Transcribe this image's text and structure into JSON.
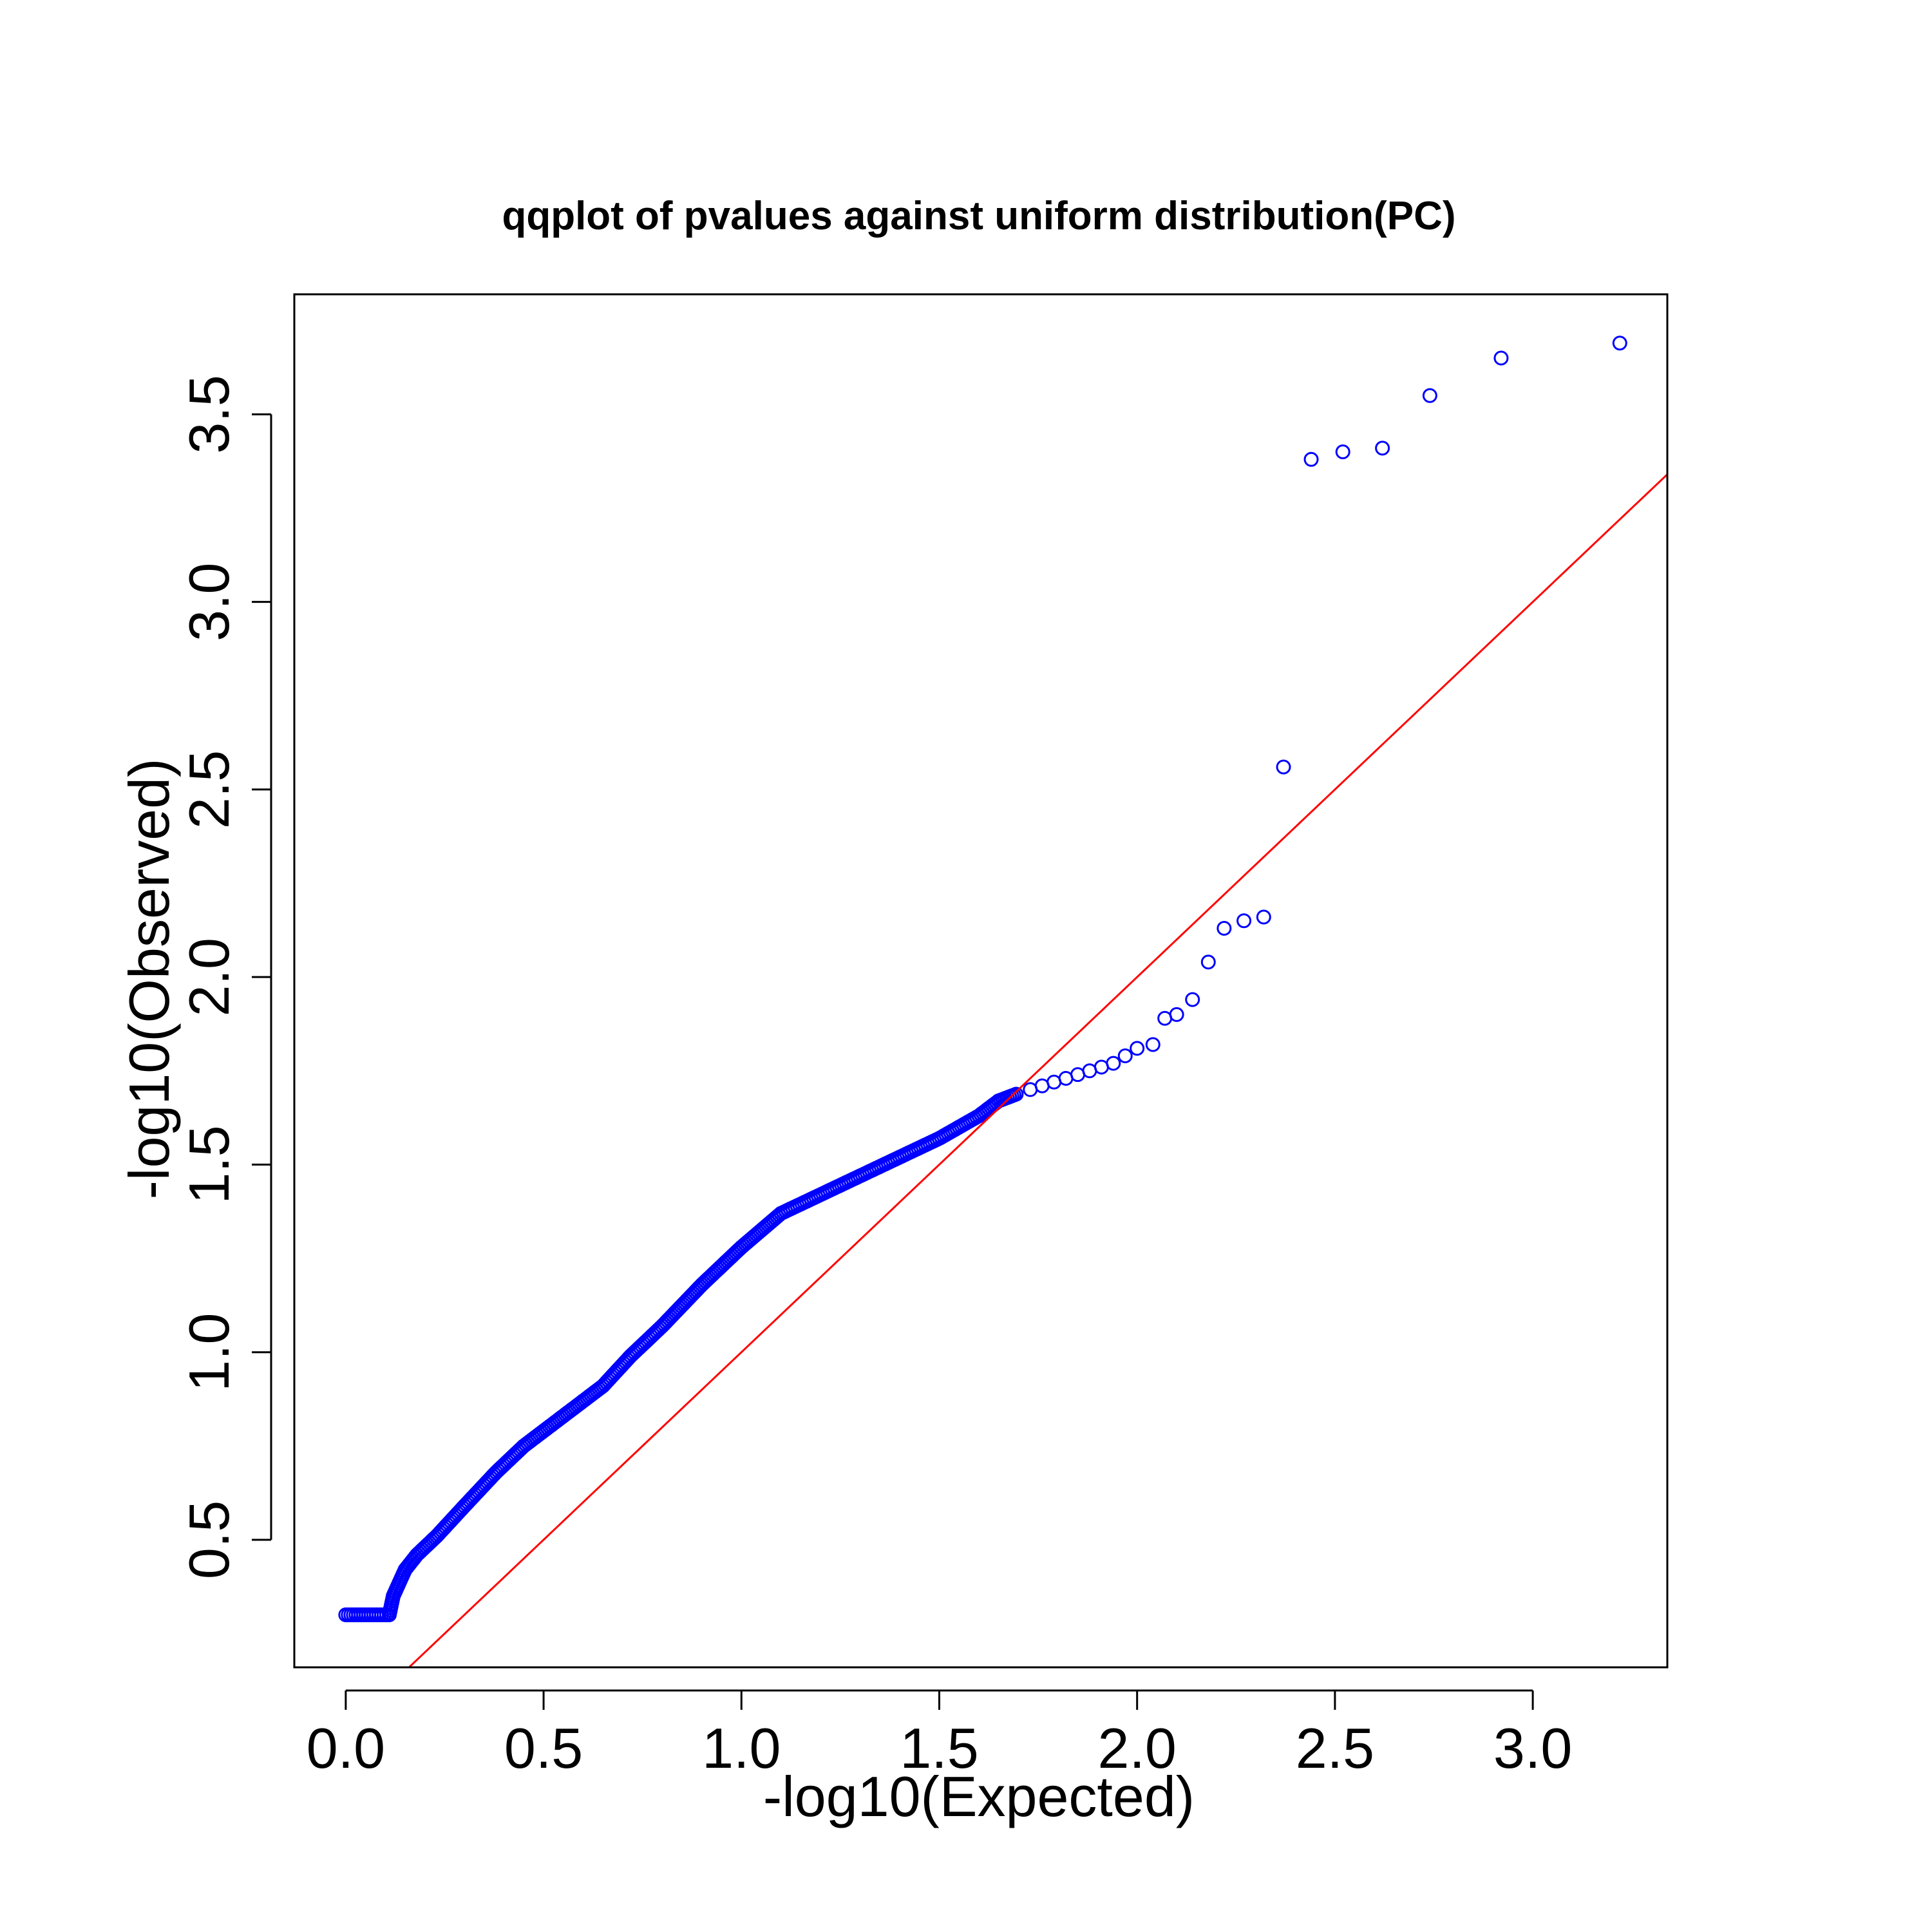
{
  "chart_data": {
    "type": "scatter",
    "title": "qqplot of pvalues against uniform distribution(PC)",
    "xlabel": "-log10(Expected)",
    "ylabel": "-log10(Observed)",
    "xlim": [
      -0.13,
      3.34
    ],
    "ylim": [
      0.16,
      3.82
    ],
    "xticks": [
      0.0,
      0.5,
      1.0,
      1.5,
      2.0,
      2.5,
      3.0
    ],
    "xtick_labels": [
      "0.0",
      "0.5",
      "1.0",
      "1.5",
      "2.0",
      "2.5",
      "3.0"
    ],
    "yticks": [
      0.5,
      1.0,
      1.5,
      2.0,
      2.5,
      3.0,
      3.5
    ],
    "ytick_labels": [
      "0.5",
      "1.0",
      "1.5",
      "2.0",
      "2.5",
      "3.0",
      "3.5"
    ],
    "grid": false,
    "point_color": "#0000ff",
    "reference_line_color": "#ff0000",
    "reference_line": {
      "slope": 1,
      "intercept": 0
    },
    "series": [
      {
        "curve": [
          [
            0.0,
            0.3
          ],
          [
            0.11,
            0.3
          ],
          [
            0.12,
            0.35
          ],
          [
            0.15,
            0.42
          ],
          [
            0.18,
            0.46
          ],
          [
            0.23,
            0.51
          ],
          [
            0.3,
            0.59
          ],
          [
            0.38,
            0.68
          ],
          [
            0.45,
            0.75
          ],
          [
            0.55,
            0.83
          ],
          [
            0.65,
            0.91
          ],
          [
            0.72,
            0.99
          ],
          [
            0.8,
            1.07
          ],
          [
            0.9,
            1.18
          ],
          [
            1.0,
            1.28
          ],
          [
            1.1,
            1.37
          ],
          [
            1.2,
            1.42
          ],
          [
            1.3,
            1.47
          ],
          [
            1.4,
            1.52
          ],
          [
            1.5,
            1.57
          ],
          [
            1.6,
            1.63
          ],
          [
            1.65,
            1.67
          ],
          [
            1.7,
            1.69
          ]
        ],
        "points": [
          [
            1.73,
            1.7
          ],
          [
            1.76,
            1.71
          ],
          [
            1.79,
            1.72
          ],
          [
            1.82,
            1.73
          ],
          [
            1.85,
            1.74
          ],
          [
            1.88,
            1.75
          ],
          [
            1.91,
            1.76
          ],
          [
            1.94,
            1.77
          ],
          [
            1.97,
            1.79
          ],
          [
            2.0,
            1.81
          ],
          [
            2.04,
            1.82
          ],
          [
            2.07,
            1.89
          ],
          [
            2.1,
            1.9
          ],
          [
            2.14,
            1.94
          ],
          [
            2.18,
            2.04
          ],
          [
            2.22,
            2.13
          ],
          [
            2.27,
            2.15
          ],
          [
            2.32,
            2.16
          ],
          [
            2.37,
            2.56
          ],
          [
            2.44,
            3.38
          ],
          [
            2.52,
            3.4
          ],
          [
            2.62,
            3.41
          ],
          [
            2.74,
            3.55
          ],
          [
            2.92,
            3.65
          ],
          [
            3.22,
            3.69
          ]
        ]
      }
    ]
  }
}
